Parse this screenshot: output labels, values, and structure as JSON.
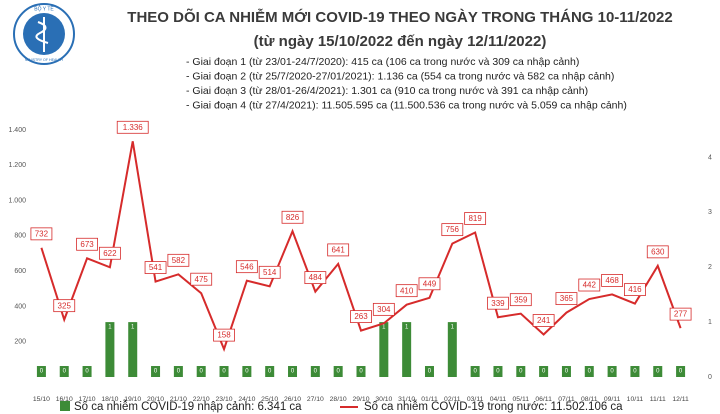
{
  "logo": {
    "name": "BỘ Y TẾ",
    "name_en": "MINISTRY OF HEALTH"
  },
  "chart_data": {
    "type": "combo",
    "title": "THEO DÕI CA NHIỄM MỚI COVID-19 THEO NGÀY TRONG THÁNG 10-11/2022",
    "subtitle": "(từ ngày 15/10/2022 đến ngày 12/11/2022)",
    "notes": [
      "- Giai đoạn 1 (từ 23/01-24/7/2020): 415 ca (106 ca trong nước và 309 ca nhập cảnh)",
      "- Giai đoạn 2 (từ 25/7/2020-27/01/2021): 1.136 ca (554 ca trong nước và 582 ca nhập cảnh)",
      "- Giai đoạn 3 (từ 28/01-26/4/2021): 1.301 ca (910 ca trong nước và 391 ca nhập cảnh)",
      "- Giai đoạn 4 (từ 27/4/2021): 11.505.595 ca (11.500.536 ca trong nước và 5.059 ca nhập cảnh)"
    ],
    "categories": [
      "15/10",
      "16/10",
      "17/10",
      "18/10",
      "19/10",
      "20/10",
      "21/10",
      "22/10",
      "23/10",
      "24/10",
      "25/10",
      "26/10",
      "27/10",
      "28/10",
      "29/10",
      "30/10",
      "31/10",
      "01/11",
      "02/11",
      "03/11",
      "04/11",
      "05/11",
      "06/11",
      "07/11",
      "08/11",
      "09/11",
      "10/11",
      "11/11",
      "12/11"
    ],
    "series": [
      {
        "name": "Số ca nhiễm COVID-19 nhập cảnh: 6.341 ca",
        "type": "bar",
        "axis": "y2",
        "color": "#3d8b37",
        "values": [
          0.2,
          0.2,
          0.2,
          1,
          1,
          0.2,
          0.2,
          0.2,
          0.2,
          0.2,
          0.2,
          0.2,
          0.2,
          0.2,
          0.2,
          1,
          1,
          0.2,
          1,
          0.2,
          0.2,
          0.2,
          0.2,
          0.2,
          0.2,
          0.2,
          0.2,
          0.2,
          0.2
        ],
        "value_labels": [
          "0",
          "0",
          "0",
          "1",
          "1",
          "0",
          "0",
          "0",
          "0",
          "0",
          "0",
          "0",
          "0",
          "0",
          "0",
          "1",
          "1",
          "0",
          "1",
          "0",
          "0",
          "0",
          "0",
          "0",
          "0",
          "0",
          "0",
          "0",
          "0"
        ]
      },
      {
        "name": "Số ca nhiễm COVID-19 trong nước: 11.502.106 ca",
        "type": "line",
        "color": "#d62b2b",
        "values": [
          732,
          325,
          673,
          622,
          1336,
          541,
          582,
          475,
          158,
          546,
          514,
          826,
          484,
          641,
          263,
          304,
          410,
          449,
          756,
          819,
          339,
          359,
          241,
          365,
          442,
          468,
          416,
          630,
          277
        ],
        "value_labels": [
          "732",
          "325",
          "673",
          "622",
          "1.336",
          "541",
          "582",
          "475",
          "158",
          "546",
          "514",
          "826",
          "484",
          "641",
          "263",
          "304",
          "410",
          "449",
          "756",
          "819",
          "339",
          "359",
          "241",
          "365",
          "442",
          "468",
          "416",
          "630",
          "277"
        ]
      }
    ],
    "ylim": [
      0,
      1400
    ],
    "yticks": [
      {
        "value": 200,
        "label": "200"
      },
      {
        "value": 400,
        "label": "400"
      },
      {
        "value": 600,
        "label": "600"
      },
      {
        "value": 800,
        "label": "800"
      },
      {
        "value": 1000,
        "label": "1.000"
      },
      {
        "value": 1200,
        "label": "1.200"
      },
      {
        "value": 1400,
        "label": "1.400"
      }
    ],
    "y2lim": [
      0,
      4.5
    ],
    "y2ticks": [
      0,
      1,
      2,
      3,
      4
    ]
  }
}
